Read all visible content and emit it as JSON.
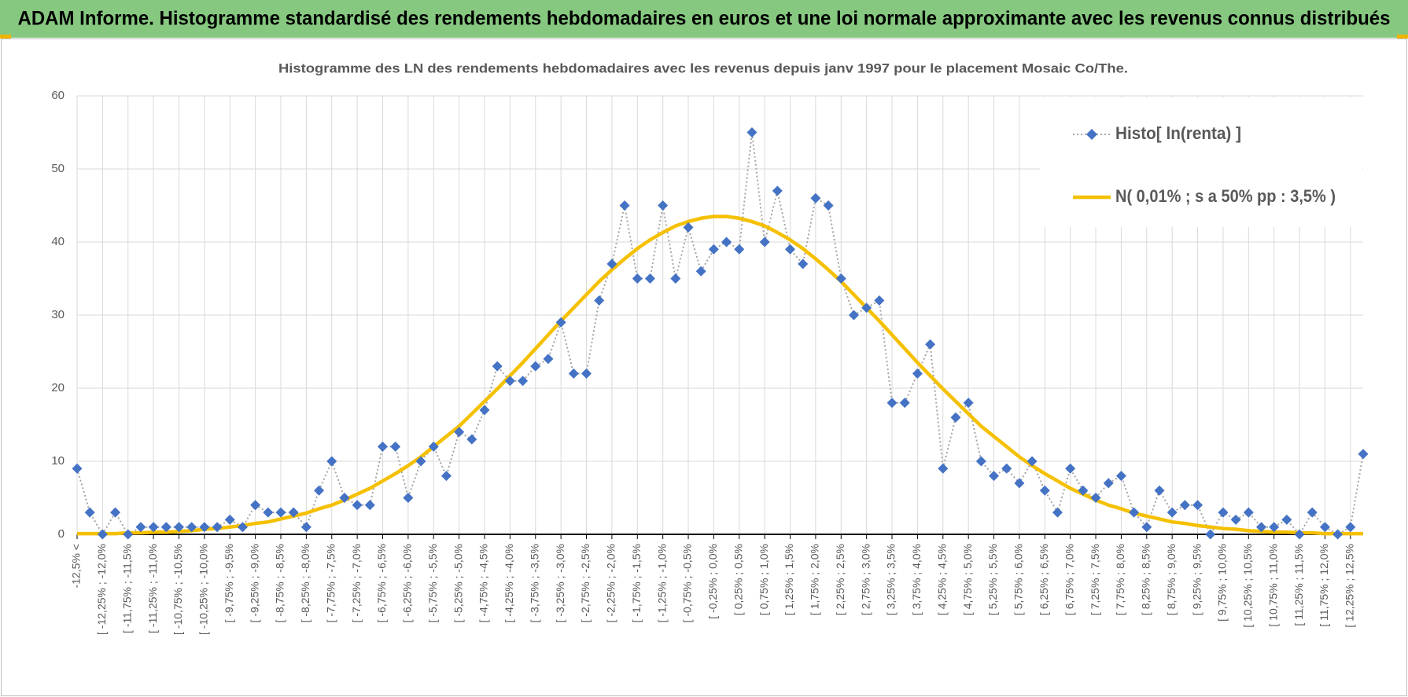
{
  "chart_data": {
    "type": "line",
    "title": "ADAM Informe. Histogramme standardisé des rendements hebdomadaires en euros et une loi normale approximante avec les revenus connus distribués",
    "subtitle": "Histogramme  des LN des rendements hebdomadaires avec les revenus depuis janv 1997 pour le placement Mosaic Co/The.",
    "categories": [
      "-12,5% <",
      null,
      "[ -12,25% ; -12,0%",
      null,
      "[ -11,75% ; -11,5%",
      null,
      "[ -11,25% ; -11,0%",
      null,
      "[ -10,75% ; -10,5%",
      null,
      "[ -10,25% ; -10,0%",
      null,
      "[ -9,75% ; -9,5%",
      null,
      "[ -9,25% ; -9,0%",
      null,
      "[ -8,75% ; -8,5%",
      null,
      "[ -8,25% ; -8,0%",
      null,
      "[ -7,75% ; -7,5%",
      null,
      "[ -7,25% ; -7,0%",
      null,
      "[ -6,75% ; -6,5%",
      null,
      "[ -6,25% ; -6,0%",
      null,
      "[ -5,75% ; -5,5%",
      null,
      "[ -5,25% ; -5,0%",
      null,
      "[ -4,75% ; -4,5%",
      null,
      "[ -4,25% ; -4,0%",
      null,
      "[ -3,75% ; -3,5%",
      null,
      "[ -3,25% ; -3,0%",
      null,
      "[ -2,75% ; -2,5%",
      null,
      "[ -2,25% ; -2,0%",
      null,
      "[ -1,75% ; -1,5%",
      null,
      "[ -1,25% ; -1,0%",
      null,
      "[ -0,75% ; -0,5%",
      null,
      "[ -0,25% ; 0,0%",
      null,
      "[ 0,25% ; 0,5%",
      null,
      "[ 0,75% ; 1,0%",
      null,
      "[ 1,25% ; 1,5%",
      null,
      "[ 1,75% ; 2,0%",
      null,
      "[ 2,25% ; 2,5%",
      null,
      "[ 2,75% ; 3,0%",
      null,
      "[ 3,25% ; 3,5%",
      null,
      "[ 3,75% ; 4,0%",
      null,
      "[ 4,25% ; 4,5%",
      null,
      "[ 4,75% ; 5,0%",
      null,
      "[ 5,25% ; 5,5%",
      null,
      "[ 5,75% ; 6,0%",
      null,
      "[ 6,25% ; 6,5%",
      null,
      "[ 6,75% ; 7,0%",
      null,
      "[ 7,25% ; 7,5%",
      null,
      "[ 7,75% ; 8,0%",
      null,
      "[ 8,25% ; 8,5%",
      null,
      "[ 8,75% ; 9,0%",
      null,
      "[ 9,25% ; 9,5%",
      null,
      "[ 9,75% ; 10,0%",
      null,
      "[ 10,25% ; 10,5%",
      null,
      "[ 10,75% ; 11,0%",
      null,
      "[ 11,25% ; 11,5%",
      null,
      "[ 11,75% ; 12,0%",
      null,
      "[ 12,25% ; 12,5%",
      null
    ],
    "series": [
      {
        "name": "Histo[ ln(renta) ]",
        "color": "#4472c4",
        "line_color": "#a5a5a5",
        "line_style": "dotted",
        "marker": "diamond",
        "values": [
          9,
          3,
          0,
          3,
          0,
          1,
          1,
          1,
          1,
          1,
          1,
          1,
          2,
          1,
          4,
          3,
          3,
          3,
          1,
          6,
          10,
          5,
          4,
          4,
          12,
          12,
          5,
          10,
          12,
          8,
          14,
          13,
          17,
          23,
          21,
          21,
          23,
          24,
          29,
          22,
          22,
          32,
          37,
          45,
          35,
          35,
          45,
          35,
          42,
          36,
          39,
          40,
          39,
          55,
          40,
          47,
          39,
          37,
          46,
          45,
          35,
          30,
          31,
          32,
          18,
          18,
          22,
          26,
          9,
          16,
          18,
          10,
          8,
          9,
          7,
          10,
          6,
          3,
          9,
          6,
          5,
          7,
          8,
          3,
          1,
          6,
          3,
          4,
          4,
          0,
          3,
          2,
          3,
          1,
          1,
          2,
          0,
          3,
          1,
          0,
          1,
          11
        ]
      },
      {
        "name": "N( 0,01% ; s a 50% pp : 3,5% )",
        "color": "#f5c000",
        "line_style": "solid",
        "marker": "none",
        "values": [
          0.1,
          0.1,
          0.1,
          0.1,
          0.2,
          0.2,
          0.3,
          0.3,
          0.4,
          0.5,
          0.7,
          0.8,
          1.0,
          1.2,
          1.5,
          1.7,
          2.1,
          2.5,
          2.9,
          3.5,
          4.0,
          4.7,
          5.5,
          6.3,
          7.3,
          8.3,
          9.4,
          10.6,
          12.0,
          13.4,
          14.8,
          16.5,
          18.2,
          19.9,
          21.7,
          23.5,
          25.4,
          27.3,
          29.2,
          31.0,
          32.8,
          34.6,
          36.2,
          37.7,
          39.1,
          40.3,
          41.3,
          42.2,
          42.8,
          43.25,
          43.5,
          43.5,
          43.25,
          42.8,
          42.2,
          41.3,
          40.3,
          39.1,
          37.7,
          36.2,
          34.6,
          32.8,
          31.0,
          29.2,
          27.3,
          25.4,
          23.5,
          21.7,
          19.9,
          18.2,
          16.5,
          14.8,
          13.4,
          12.0,
          10.6,
          9.4,
          8.3,
          7.3,
          6.3,
          5.5,
          4.7,
          4.0,
          3.5,
          2.9,
          2.5,
          2.1,
          1.7,
          1.5,
          1.2,
          1.0,
          0.8,
          0.7,
          0.5,
          0.4,
          0.3,
          0.3,
          0.2,
          0.2,
          0.1,
          0.1,
          0.1,
          0.1
        ]
      }
    ],
    "ylim": [
      0,
      60
    ],
    "yticks": [
      0,
      10,
      20,
      30,
      40,
      50,
      60
    ],
    "grid": true,
    "legend": "upper right"
  }
}
